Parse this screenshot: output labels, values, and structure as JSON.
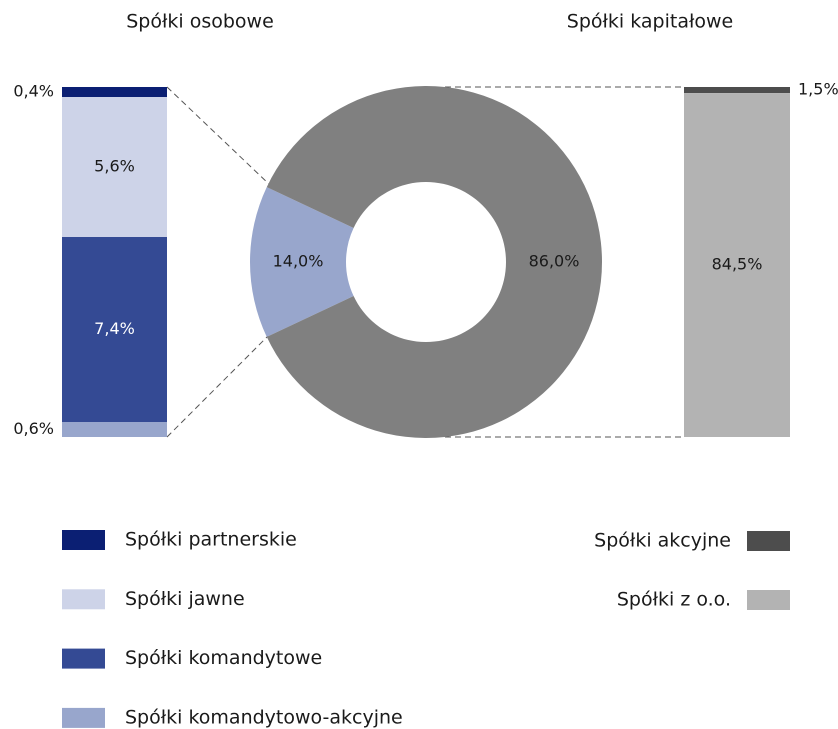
{
  "chart_data": [
    {
      "type": "bar",
      "stacked": true,
      "title": "Spółki osobowe",
      "series": [
        {
          "name": "Spółki partnerskie",
          "color": "#0b1f73",
          "values": [
            0.4
          ],
          "value_labels": [
            "0,4%"
          ]
        },
        {
          "name": "Spółki jawne",
          "color": "#cdd3e8",
          "values": [
            5.6
          ],
          "value_labels": [
            "5,6%"
          ]
        },
        {
          "name": "Spółki komandytowe",
          "color": "#344a94",
          "values": [
            7.4
          ],
          "value_labels": [
            "7,4%"
          ]
        },
        {
          "name": "Spółki komandytowo-akcyjne",
          "color": "#98a6cc",
          "values": [
            0.6
          ],
          "value_labels": [
            "0,6%"
          ]
        }
      ]
    },
    {
      "type": "pie",
      "donut": true,
      "values": [
        14.0,
        86.0
      ],
      "value_labels": [
        "14,0%",
        "86,0%"
      ],
      "colors": [
        "#98a6cc",
        "#808080"
      ]
    },
    {
      "type": "bar",
      "stacked": true,
      "title": "Spółki kapitałowe",
      "series": [
        {
          "name": "Spółki akcyjne",
          "color": "#4d4d4d",
          "values": [
            1.5
          ],
          "value_labels": [
            "1,5%"
          ]
        },
        {
          "name": "Spółki z o.o.",
          "color": "#b3b3b3",
          "values": [
            84.5
          ],
          "value_labels": [
            "84,5%"
          ]
        }
      ]
    }
  ]
}
